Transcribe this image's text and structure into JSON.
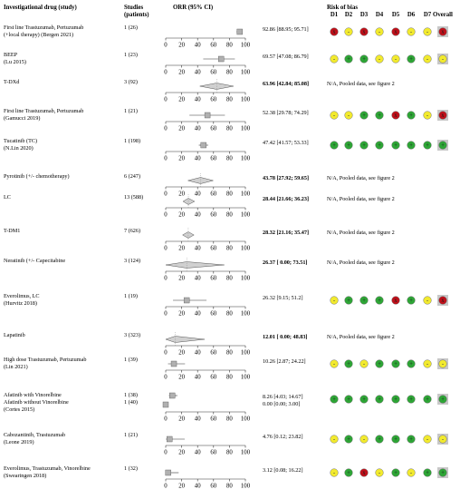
{
  "headers": {
    "drug": "Investigational drug (study)",
    "studies": "Studies",
    "studies2": "(patients)",
    "orr": "ORR (95% CI)",
    "rob": "Risk of bias",
    "domains": [
      "D1",
      "D2",
      "D3",
      "D4",
      "D5",
      "D6",
      "D7",
      "Overall"
    ]
  },
  "colors": {
    "low": "#2ea636",
    "some": "#f2ea2e",
    "high": "#c0101a",
    "overall_bg": "#c8c8c8",
    "diamond": "#d0d0d0",
    "square": "#b0b0b0"
  },
  "rob_legend": {
    "low": "+",
    "some": "-",
    "high": "x"
  },
  "axis": {
    "ticks": [
      0,
      20,
      40,
      60,
      80,
      100
    ],
    "xlim": [
      0,
      100
    ]
  },
  "chart_data": {
    "type": "forest",
    "title": "",
    "xlabel": "",
    "xlim": [
      0,
      100
    ],
    "rows": [
      {
        "drug": [
          "First line Trastuzumab, Pertuzumab",
          "(+local therapy) (Bergen 2021)"
        ],
        "studies": "1 (26)",
        "kind": "study",
        "est": 92.86,
        "lo": 88.95,
        "hi": 95.71,
        "label": "92.86 [88.95; 95.71]",
        "bold": false,
        "rob": [
          "high",
          "some",
          "high",
          "some",
          "high",
          "some",
          "some",
          "high"
        ]
      },
      {
        "drug": [
          "BEEP",
          "(Lu 2015)"
        ],
        "studies": "1 (23)",
        "kind": "study",
        "est": 69.57,
        "lo": 47.08,
        "hi": 86.79,
        "label": "69.57 [47.08; 86.79]",
        "bold": false,
        "rob": [
          "some",
          "low",
          "low",
          "some",
          "some",
          "low",
          "some",
          "some"
        ]
      },
      {
        "drug": [
          "T-DXd"
        ],
        "studies": "3 (92)",
        "kind": "pooled",
        "est": 63.96,
        "lo": 42.84,
        "hi": 85.08,
        "label": "63.96 [42.84; 85.08]",
        "bold": true,
        "na": "N/A, Pooled data, see figure 2"
      },
      {
        "drug": [
          "First line Trastuzumab, Pertuzumab",
          "(Gamucci 2019)"
        ],
        "studies": "1 (21)",
        "kind": "study",
        "est": 52.38,
        "lo": 29.78,
        "hi": 74.29,
        "label": "52.38 [29.78; 74.29]",
        "bold": false,
        "rob": [
          "some",
          "some",
          "low",
          "low",
          "high",
          "low",
          "some",
          "high"
        ]
      },
      {
        "drug": [
          "Tucatinib (TC)",
          "(N.Lin 2020)"
        ],
        "studies": "1 (198)",
        "kind": "study",
        "est": 47.42,
        "lo": 41.57,
        "hi": 53.33,
        "label": "47.42 [41.57; 53.33]",
        "bold": false,
        "rob": [
          "low",
          "low",
          "low",
          "low",
          "low",
          "low",
          "low",
          "low"
        ]
      },
      {
        "drug": [
          "Pyrotinib (+/- chemotherapy)"
        ],
        "studies": "6 (247)",
        "kind": "pooled",
        "est": 43.78,
        "lo": 27.92,
        "hi": 59.65,
        "label": "43.78 [27.92; 59.65]",
        "bold": true,
        "na": "N/A, Pooled data, see figure 2"
      },
      {
        "drug": [
          "LC"
        ],
        "studies": "13 (588)",
        "kind": "pooled",
        "est": 28.44,
        "lo": 21.66,
        "hi": 36.23,
        "label": "28.44 [21.66; 36.23]",
        "bold": true,
        "na": "N/A, Pooled data, see figure 2"
      },
      {
        "drug": [
          "T-DM1"
        ],
        "studies": "7 (626)",
        "kind": "pooled",
        "est": 28.32,
        "lo": 21.16,
        "hi": 35.47,
        "label": "28.32 [21.16; 35.47]",
        "bold": true,
        "na": "N/A, Pooled data, see figure 2"
      },
      {
        "drug": [
          "Neratinib (+/- Capecitabine"
        ],
        "studies": "3 (124)",
        "kind": "pooled",
        "est": 26.37,
        "lo": 0.0,
        "hi": 73.51,
        "label": "26.37 [ 0.00; 73.51]",
        "bold": true,
        "na": "N/A, Pooled data, see figure 2"
      },
      {
        "drug": [
          "Everolimus, LC",
          "(Hurvitz 2018)"
        ],
        "studies": "1 (19)",
        "kind": "study",
        "est": 26.32,
        "lo": 9.15,
        "hi": 51.2,
        "label": "26.32 [9.15; 51.2]",
        "bold": false,
        "rob": [
          "some",
          "low",
          "low",
          "low",
          "high",
          "low",
          "some",
          "high"
        ]
      },
      {
        "drug": [
          "Lapatinib"
        ],
        "studies": "3 (323)",
        "kind": "pooled",
        "est": 12.01,
        "lo": 0.0,
        "hi": 48.83,
        "label": "12.01 [ 0.00; 48.83]",
        "bold": true,
        "na": "N/A, Pooled data, see figure 2"
      },
      {
        "drug": [
          "High dose Trastuzumab, Pertuzumab",
          "(Lin 2021)"
        ],
        "studies": "1 (39)",
        "kind": "study",
        "est": 10.26,
        "lo": 2.87,
        "hi": 24.22,
        "label": "10.26 [2.87; 24.22]",
        "bold": false,
        "rob": [
          "some",
          "low",
          "some",
          "low",
          "low",
          "low",
          "some",
          "some"
        ]
      },
      {
        "drug": [
          "Afatinib with Vinorelbine",
          "Afatinib without Vinorelbine",
          "(Cortes 2015)"
        ],
        "studies": "1 (38)",
        "studies2": "1 (40)",
        "kind": "double",
        "est": 8.26,
        "lo": 4.03,
        "hi": 14.67,
        "label": "8.26 [4.03; 14.67]",
        "est2": 0.0,
        "lo2": 0.0,
        "hi2": 3.0,
        "label2": "0.00 [0.00; 3.00]",
        "bold": false,
        "rob": [
          "low",
          "low",
          "low",
          "low",
          "low",
          "low",
          "low",
          "low"
        ]
      },
      {
        "drug": [
          "Cabozantinib, Trastuzumab",
          "(Leone 2019)"
        ],
        "studies": "1 (21)",
        "kind": "study",
        "est": 4.76,
        "lo": 0.12,
        "hi": 23.82,
        "label": "4.76 [0.12; 23.82]",
        "bold": false,
        "rob": [
          "some",
          "low",
          "some",
          "low",
          "low",
          "low",
          "some",
          "some"
        ]
      },
      {
        "drug": [
          "Everolimus, Trastuzumab, Vinorelbine",
          "(Swearingen 2018)"
        ],
        "studies": "1 (32)",
        "kind": "study",
        "est": 3.12,
        "lo": 0.08,
        "hi": 16.22,
        "label": "3.12 [0.08; 16.22]",
        "bold": false,
        "rob": [
          "some",
          "low",
          "high",
          "some",
          "low",
          "some",
          "low",
          "low"
        ]
      }
    ]
  }
}
